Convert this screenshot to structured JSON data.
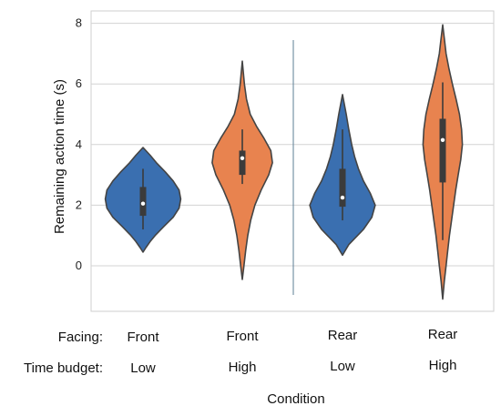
{
  "chart_data": {
    "type": "violin",
    "ylabel": "Remaining action time (s)",
    "xlabel": "Condition",
    "ylim": [
      -1.5,
      8.5
    ],
    "yticks": [
      0,
      2,
      4,
      6,
      8
    ],
    "grid": true,
    "row_labels": [
      "Facing:",
      "Time budget:"
    ],
    "groups": [
      {
        "facing": "Front",
        "budget": "Low",
        "color": "#3a6fb0",
        "min": 0.45,
        "q1": 1.65,
        "median": 2.05,
        "q3": 2.6,
        "max": 3.9,
        "whisker_low": 1.2,
        "whisker_high": 3.2,
        "density": [
          [
            0.45,
            0.0
          ],
          [
            0.6,
            0.07
          ],
          [
            0.8,
            0.17
          ],
          [
            1.0,
            0.29
          ],
          [
            1.3,
            0.5
          ],
          [
            1.6,
            0.72
          ],
          [
            1.9,
            0.86
          ],
          [
            2.2,
            0.9
          ],
          [
            2.5,
            0.86
          ],
          [
            2.8,
            0.72
          ],
          [
            3.1,
            0.53
          ],
          [
            3.4,
            0.32
          ],
          [
            3.65,
            0.17
          ],
          [
            3.9,
            0.0
          ]
        ]
      },
      {
        "facing": "Front",
        "budget": "High",
        "color": "#e8834f",
        "min": -0.45,
        "q1": 3.0,
        "median": 3.55,
        "q3": 3.8,
        "max": 6.75,
        "whisker_low": 2.7,
        "whisker_high": 4.5,
        "density": [
          [
            -0.45,
            0.0
          ],
          [
            0.0,
            0.04
          ],
          [
            0.5,
            0.08
          ],
          [
            1.0,
            0.13
          ],
          [
            1.5,
            0.2
          ],
          [
            2.0,
            0.3
          ],
          [
            2.5,
            0.45
          ],
          [
            3.0,
            0.63
          ],
          [
            3.4,
            0.72
          ],
          [
            3.8,
            0.68
          ],
          [
            4.2,
            0.52
          ],
          [
            4.6,
            0.34
          ],
          [
            5.0,
            0.19
          ],
          [
            5.5,
            0.1
          ],
          [
            6.0,
            0.05
          ],
          [
            6.75,
            0.0
          ]
        ]
      },
      {
        "facing": "Rear",
        "budget": "Low",
        "color": "#3a6fb0",
        "min": 0.35,
        "q1": 1.95,
        "median": 2.25,
        "q3": 3.2,
        "max": 5.65,
        "whisker_low": 1.5,
        "whisker_high": 4.5,
        "density": [
          [
            0.35,
            0.0
          ],
          [
            0.7,
            0.15
          ],
          [
            1.2,
            0.5
          ],
          [
            1.6,
            0.7
          ],
          [
            2.0,
            0.78
          ],
          [
            2.4,
            0.66
          ],
          [
            2.8,
            0.5
          ],
          [
            3.2,
            0.38
          ],
          [
            3.6,
            0.29
          ],
          [
            4.0,
            0.22
          ],
          [
            4.5,
            0.15
          ],
          [
            5.0,
            0.09
          ],
          [
            5.65,
            0.0
          ]
        ]
      },
      {
        "facing": "Rear",
        "budget": "High",
        "color": "#e8834f",
        "min": -1.1,
        "q1": 2.75,
        "median": 4.15,
        "q3": 4.85,
        "max": 7.95,
        "whisker_low": 0.85,
        "whisker_high": 6.05,
        "density": [
          [
            -1.1,
            0.0
          ],
          [
            -0.5,
            0.04
          ],
          [
            0.0,
            0.08
          ],
          [
            0.5,
            0.12
          ],
          [
            1.0,
            0.16
          ],
          [
            1.5,
            0.21
          ],
          [
            2.0,
            0.26
          ],
          [
            2.5,
            0.31
          ],
          [
            3.0,
            0.37
          ],
          [
            3.5,
            0.43
          ],
          [
            4.0,
            0.47
          ],
          [
            4.5,
            0.45
          ],
          [
            5.0,
            0.4
          ],
          [
            5.5,
            0.32
          ],
          [
            6.0,
            0.23
          ],
          [
            6.5,
            0.15
          ],
          [
            7.0,
            0.08
          ],
          [
            7.5,
            0.04
          ],
          [
            7.95,
            0.0
          ]
        ]
      }
    ]
  }
}
